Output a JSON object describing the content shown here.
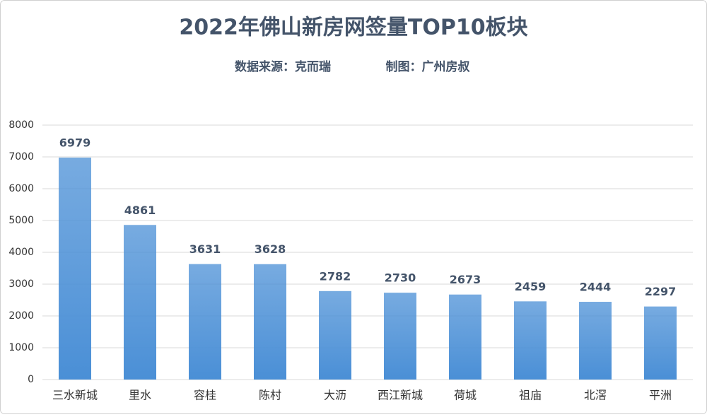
{
  "chart_data": {
    "type": "bar",
    "title": "2022年佛山新房网签量TOP10板块",
    "source": "数据来源：克而瑞",
    "credit": "制图：广州房叔",
    "categories": [
      "三水新城",
      "里水",
      "容桂",
      "陈村",
      "大沥",
      "西江新城",
      "荷城",
      "祖庙",
      "北滘",
      "平洲"
    ],
    "values": [
      6979,
      4861,
      3631,
      3628,
      2782,
      2730,
      2673,
      2459,
      2444,
      2297
    ],
    "color": "#4a8fd6",
    "ylim": [
      0,
      8000
    ],
    "yticks": [
      0,
      1000,
      2000,
      3000,
      4000,
      5000,
      6000,
      7000,
      8000
    ],
    "grid": true
  }
}
